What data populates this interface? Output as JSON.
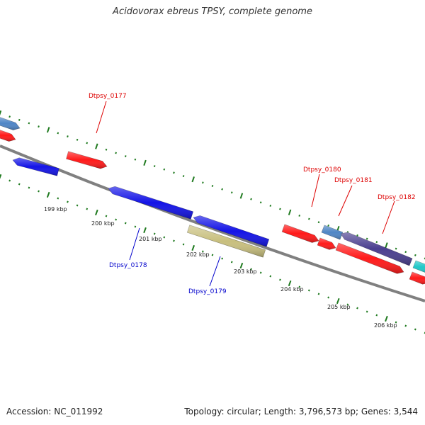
{
  "title": "Acidovorax ebreus TPSY, complete genome",
  "footer": {
    "accession": "Accession: NC_011992",
    "summary": "Topology: circular; Length: 3,796,573 bp; Genes: 3,544"
  },
  "colors": {
    "backbone": "#808080",
    "tick": "#1f7a1f",
    "plus_label": "#dd0000",
    "minus_label": "#0000cc"
  },
  "scale_labels": [
    "199 kbp",
    "200 kbp",
    "201 kbp",
    "202 kbp",
    "203 kbp",
    "204 kbp",
    "205 kbp",
    "206 kbp"
  ],
  "gene_labels": [
    {
      "text": "Dtpsy_0177",
      "strand": "plus"
    },
    {
      "text": "Dtpsy_0178",
      "strand": "minus"
    },
    {
      "text": "Dtpsy_0179",
      "strand": "minus"
    },
    {
      "text": "Dtpsy_0180",
      "strand": "plus"
    },
    {
      "text": "Dtpsy_0181",
      "strand": "plus"
    },
    {
      "text": "Dtpsy_0182",
      "strand": "plus"
    }
  ],
  "features": [
    {
      "name": "gene-feature-steelblue-1",
      "color": "#4f86c6"
    },
    {
      "name": "gene-feature-red-1",
      "color": "#ff1a1a"
    },
    {
      "name": "gene-feature-blue-1",
      "color": "#1414e6"
    },
    {
      "name": "gene-feature-dtpsy-0177",
      "color": "#ff1a1a"
    },
    {
      "name": "gene-feature-dtpsy-0178",
      "color": "#1414e6"
    },
    {
      "name": "gene-feature-dtpsy-0178b",
      "color": "#1414e6"
    },
    {
      "name": "gene-feature-dtpsy-0179",
      "color": "#c8bf7e"
    },
    {
      "name": "gene-feature-dtpsy-0180",
      "color": "#ff1a1a"
    },
    {
      "name": "gene-feature-dtpsy-0181",
      "color": "#4f86c6"
    },
    {
      "name": "gene-feature-dtpsy-0181b",
      "color": "#ff1a1a"
    },
    {
      "name": "gene-feature-dtpsy-0182",
      "color": "#4a3f8f"
    },
    {
      "name": "gene-feature-dtpsy-0182b",
      "color": "#ff1a1a"
    },
    {
      "name": "gene-feature-cyan-1",
      "color": "#20c8c8"
    },
    {
      "name": "gene-feature-red-2",
      "color": "#ff1a1a"
    }
  ]
}
